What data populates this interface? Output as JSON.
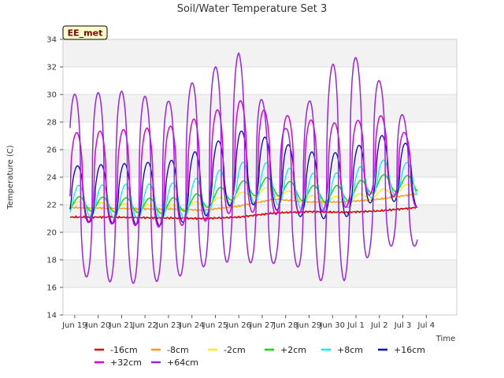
{
  "chart_data": {
    "type": "line",
    "title": "Soil/Water Temperature Set 3",
    "xlabel": "Time",
    "ylabel": "Temperature (C)",
    "annotation": "EE_met",
    "ylim": [
      14,
      34
    ],
    "yticks": [
      14,
      16,
      18,
      20,
      22,
      24,
      26,
      28,
      30,
      32,
      34
    ],
    "xlim": [
      0,
      16.8
    ],
    "xticks": [
      {
        "label": "Jun 19",
        "x": 0.5
      },
      {
        "label": "Jun 20",
        "x": 1.5
      },
      {
        "label": "Jun 21",
        "x": 2.5
      },
      {
        "label": "Jun 22",
        "x": 3.5
      },
      {
        "label": "Jun 23",
        "x": 4.5
      },
      {
        "label": "Jun 24",
        "x": 5.5
      },
      {
        "label": "Jun 25",
        "x": 6.5
      },
      {
        "label": "Jun 26",
        "x": 7.5
      },
      {
        "label": "Jun 27",
        "x": 8.5
      },
      {
        "label": "Jun 28",
        "x": 9.5
      },
      {
        "label": "Jun 29",
        "x": 10.5
      },
      {
        "label": "Jun 30",
        "x": 11.5
      },
      {
        "label": "Jul 1",
        "x": 12.5
      },
      {
        "label": "Jul 2",
        "x": 13.5
      },
      {
        "label": "Jul 3",
        "x": 14.5
      },
      {
        "label": "Jul 4",
        "x": 15.5
      }
    ],
    "grid": "horizontal bands",
    "legend_position": "bottom",
    "series": [
      {
        "name": "-16cm",
        "color": "#dd0000",
        "width": 1.6,
        "type": "trend",
        "points": [
          [
            0.3,
            21.1
          ],
          [
            2,
            21.1
          ],
          [
            4,
            21.05
          ],
          [
            6,
            21.0
          ],
          [
            7.5,
            21.1
          ],
          [
            9,
            21.4
          ],
          [
            10.5,
            21.5
          ],
          [
            12,
            21.45
          ],
          [
            13.5,
            21.55
          ],
          [
            15.1,
            21.8
          ]
        ]
      },
      {
        "name": "-8cm",
        "color": "#ff9900",
        "width": 1.4,
        "type": "trend",
        "points": [
          [
            0.3,
            21.8
          ],
          [
            2,
            21.75
          ],
          [
            3.5,
            21.7
          ],
          [
            4.5,
            21.7
          ],
          [
            6,
            21.6
          ],
          [
            7.5,
            21.9
          ],
          [
            9,
            22.4
          ],
          [
            10.5,
            22.2
          ],
          [
            12,
            22.2
          ],
          [
            13.5,
            22.4
          ],
          [
            15.1,
            22.8
          ]
        ]
      },
      {
        "name": "-2cm",
        "color": "#ffee00",
        "width": 1.4,
        "type": "daily",
        "params": {
          "base": [
            [
              0.3,
              22.0
            ],
            [
              4.5,
              21.7
            ],
            [
              6,
              22.0
            ],
            [
              7.5,
              22.6
            ],
            [
              8.8,
              23.0
            ],
            [
              10.5,
              22.4
            ],
            [
              12,
              22.3
            ],
            [
              13.5,
              22.8
            ],
            [
              15.1,
              23.3
            ]
          ],
          "amp": [
            [
              0.3,
              0.25
            ],
            [
              15.1,
              0.3
            ]
          ],
          "peak": 0.65,
          "sharp": 1
        }
      },
      {
        "name": "+2cm",
        "color": "#00dd00",
        "width": 1.4,
        "type": "daily",
        "params": {
          "base": [
            [
              0.3,
              22.1
            ],
            [
              4.5,
              21.9
            ],
            [
              6,
              22.3
            ],
            [
              7.5,
              23.1
            ],
            [
              8.8,
              23.4
            ],
            [
              10.5,
              22.8
            ],
            [
              12,
              22.8
            ],
            [
              13.5,
              23.6
            ],
            [
              15.1,
              23.5
            ]
          ],
          "amp": [
            [
              0.3,
              0.5
            ],
            [
              8,
              0.6
            ],
            [
              15.1,
              0.6
            ]
          ],
          "peak": 0.7,
          "sharp": 1
        }
      },
      {
        "name": "+8cm",
        "color": "#00eeee",
        "width": 1.3,
        "type": "daily",
        "params": {
          "base": [
            [
              0.3,
              22.3
            ],
            [
              4.5,
              22.2
            ],
            [
              6,
              22.6
            ],
            [
              7.5,
              23.6
            ],
            [
              8.8,
              23.6
            ],
            [
              10.5,
              22.9
            ],
            [
              12,
              23.0
            ],
            [
              13.5,
              24.0
            ],
            [
              15.1,
              23.8
            ]
          ],
          "amp": [
            [
              0.3,
              1.1
            ],
            [
              7.5,
              1.5
            ],
            [
              15.1,
              1.2
            ]
          ],
          "peak": 0.68,
          "sharp": 1.2
        }
      },
      {
        "name": "+16cm",
        "color": "#0000cc",
        "width": 1.3,
        "type": "daily",
        "params": {
          "base": [
            [
              0.3,
              22.8
            ],
            [
              4.5,
              22.8
            ],
            [
              6,
              23.6
            ],
            [
              7.5,
              24.8
            ],
            [
              8.8,
              24.3
            ],
            [
              10.5,
              23.4
            ],
            [
              12,
              23.4
            ],
            [
              13.5,
              24.8
            ],
            [
              15.1,
              24.0
            ]
          ],
          "amp": [
            [
              0.3,
              2.0
            ],
            [
              7.5,
              2.6
            ],
            [
              15.1,
              2.2
            ]
          ],
          "peak": 0.62,
          "sharp": 1.5
        }
      },
      {
        "name": "+32cm",
        "color": "#dd00dd",
        "width": 1.5,
        "type": "daily",
        "params": {
          "base": [
            [
              0.3,
              24.0
            ],
            [
              4.5,
              24.0
            ],
            [
              6,
              24.6
            ],
            [
              7.5,
              25.6
            ],
            [
              8.8,
              25.0
            ],
            [
              10.5,
              24.8
            ],
            [
              12,
              24.8
            ],
            [
              13.5,
              25.8
            ],
            [
              15.1,
              24.2
            ]
          ],
          "amp": [
            [
              0.3,
              3.2
            ],
            [
              7.5,
              4.0
            ],
            [
              15.1,
              2.4
            ]
          ],
          "peak": 0.58,
          "sharp": 2
        }
      },
      {
        "name": "+64cm",
        "color": "#9922ee",
        "width": 1.5,
        "type": "daily",
        "params": {
          "base": [
            [
              0.3,
              23.5
            ],
            [
              4.5,
              23.0
            ],
            [
              6,
              24.5
            ],
            [
              7.5,
              25.5
            ],
            [
              8.8,
              23.0
            ],
            [
              10.5,
              23.0
            ],
            [
              12,
              25.0
            ],
            [
              13.5,
              25.0
            ],
            [
              15.1,
              23.0
            ]
          ],
          "amp": [
            [
              0.3,
              6.5
            ],
            [
              2.5,
              7.0
            ],
            [
              4.5,
              6.5
            ],
            [
              7.5,
              7.5
            ],
            [
              9.5,
              4.5
            ],
            [
              10.5,
              6.5
            ],
            [
              12,
              8.5
            ],
            [
              13.5,
              6.0
            ],
            [
              15.1,
              4.0
            ]
          ],
          "peak": 0.5,
          "sharp": 2.5
        }
      }
    ]
  }
}
